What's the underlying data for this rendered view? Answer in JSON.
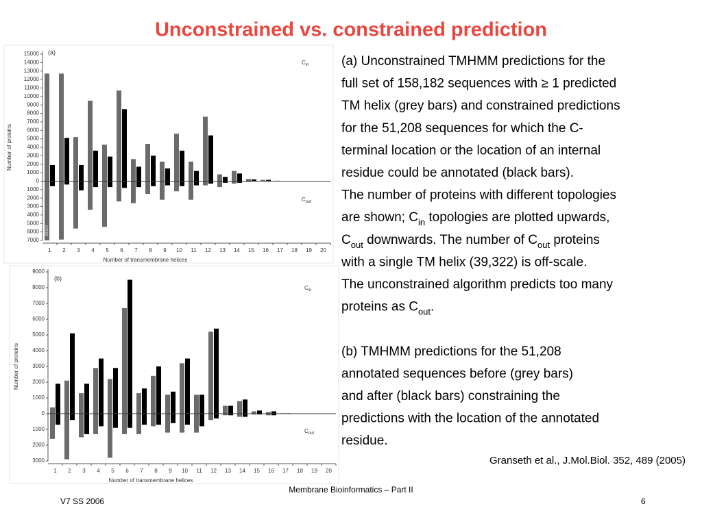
{
  "title": "Unconstrained vs. constrained prediction",
  "chart_data": [
    {
      "type": "bar",
      "panel_label": "(a)",
      "annotations": [
        {
          "text": "C",
          "sub": "in"
        },
        {
          "text": "C",
          "sub": "out"
        }
      ],
      "xlabel": "Number of transmembrane helices",
      "ylabel": "Number of proteins",
      "categories": [
        "1",
        "2",
        "3",
        "4",
        "5",
        "6",
        "7",
        "8",
        "9",
        "10",
        "11",
        "12",
        "13",
        "14",
        "15",
        "16",
        "17",
        "18",
        "19",
        "20"
      ],
      "series": [
        {
          "color": "#6b6b6b",
          "values": [
            12700,
            12700,
            5200,
            9500,
            4300,
            10700,
            2600,
            4400,
            2300,
            5600,
            2300,
            7600,
            800,
            1200,
            250,
            150,
            50,
            20,
            10,
            5
          ]
        },
        {
          "color": "#6b6b6b",
          "values": [
            -39322,
            -6900,
            -5600,
            -3400,
            -5400,
            -2400,
            -2600,
            -1500,
            -2200,
            -1200,
            -2200,
            -500,
            -700,
            -300,
            -100,
            -50,
            -20,
            -10,
            -5,
            -5
          ],
          "value_labels": [
            "39322",
            null,
            null,
            null,
            null,
            null,
            null,
            null,
            null,
            null,
            null,
            null,
            null,
            null,
            null,
            null,
            null,
            null,
            null,
            null
          ]
        },
        {
          "color": "#000000",
          "values": [
            1900,
            5100,
            1900,
            3600,
            2900,
            8500,
            1700,
            3000,
            1500,
            3600,
            1200,
            5400,
            500,
            900,
            200,
            150,
            30,
            10,
            5,
            5
          ]
        },
        {
          "color": "#000000",
          "values": [
            -600,
            -400,
            -1100,
            -700,
            -700,
            -800,
            -700,
            -600,
            -500,
            -600,
            -500,
            -300,
            -200,
            -200,
            -50,
            -50,
            -20,
            -10,
            -5,
            -5
          ]
        }
      ],
      "ylim": [
        -7000,
        15000
      ],
      "yticks": [
        15000,
        14000,
        13000,
        12000,
        11000,
        10000,
        9000,
        8000,
        7000,
        6000,
        5000,
        4000,
        3000,
        2000,
        1000,
        0,
        {
          "value": -1000,
          "label": "1000"
        },
        {
          "value": -2000,
          "label": "2000"
        },
        {
          "value": -3000,
          "label": "3000"
        },
        {
          "value": -4000,
          "label": "4000"
        },
        {
          "value": -5000,
          "label": "5000"
        },
        {
          "value": -6000,
          "label": "6000"
        },
        {
          "value": -7000,
          "label": "7000"
        }
      ]
    },
    {
      "type": "bar",
      "panel_label": "(b)",
      "annotations": [
        {
          "text": "C",
          "sub": "in"
        },
        {
          "text": "C",
          "sub": "out"
        }
      ],
      "xlabel": "Number of transmembrane helices",
      "ylabel": "Number of proteins",
      "categories": [
        "1",
        "2",
        "3",
        "4",
        "5",
        "6",
        "7",
        "8",
        "9",
        "10",
        "11",
        "12",
        "13",
        "14",
        "15",
        "16",
        "17",
        "18",
        "19",
        "20"
      ],
      "series": [
        {
          "color": "#6b6b6b",
          "values": [
            400,
            2100,
            1300,
            2900,
            2200,
            6700,
            1300,
            2400,
            1200,
            3200,
            1200,
            5200,
            500,
            800,
            150,
            100,
            30,
            10,
            5,
            5
          ]
        },
        {
          "color": "#6b6b6b",
          "values": [
            -1600,
            -2900,
            -1500,
            -1300,
            -2800,
            -1300,
            -1300,
            -800,
            -1200,
            -1200,
            -1200,
            -400,
            -100,
            -200,
            -50,
            -100,
            -20,
            -10,
            -5,
            -5
          ]
        },
        {
          "color": "#000000",
          "values": [
            1900,
            5100,
            1900,
            3500,
            2900,
            8500,
            1600,
            3000,
            1400,
            3500,
            1200,
            5400,
            500,
            900,
            200,
            150,
            30,
            10,
            5,
            5
          ]
        },
        {
          "color": "#000000",
          "values": [
            -700,
            -400,
            -1300,
            -800,
            -900,
            -900,
            -700,
            -700,
            -600,
            -700,
            -800,
            -300,
            -100,
            -200,
            -50,
            -100,
            -20,
            -10,
            -5,
            -5
          ]
        }
      ],
      "ylim": [
        -3000,
        9000
      ],
      "yticks": [
        9000,
        8000,
        7000,
        6000,
        5000,
        4000,
        3000,
        2000,
        1000,
        0,
        {
          "value": -1000,
          "label": "1000"
        },
        {
          "value": -2000,
          "label": "2000"
        },
        {
          "value": -3000,
          "label": "3000"
        }
      ]
    }
  ],
  "text_blocks": [
    [
      [
        "(a) Unconstrained TMHMM predictions for the"
      ],
      [
        "full set of 158,182 sequences with ≥ 1 predicted"
      ],
      [
        "TM helix (grey bars) and constrained predictions"
      ],
      [
        "for the 51,208 sequences for which the C-"
      ],
      [
        "terminal location or the location of an internal"
      ],
      [
        "residue could be annotated (black bars)."
      ],
      [
        "The number of proteins with different topologies"
      ],
      [
        "are shown;  C",
        {
          "sub": "in"
        },
        " topologies are plotted upwards,"
      ],
      [
        "C",
        {
          "sub": "out"
        },
        " downwards. The number of C",
        {
          "sub": "out"
        },
        " proteins"
      ],
      [
        "with a single TM helix (39,322) is off-scale."
      ],
      [
        "The unconstrained algorithm predicts too many"
      ],
      [
        "proteins as C",
        {
          "sub": "out"
        },
        "."
      ]
    ],
    [
      [
        "(b) TMHMM predictions for the 51,208"
      ],
      [
        "annotated sequences before (grey bars)"
      ],
      [
        "and after (black bars) constraining the"
      ],
      [
        "predictions with the location of the annotated"
      ],
      [
        "residue."
      ]
    ]
  ],
  "citation": "Granseth et al., J.Mol.Biol. 352, 489 (2005)",
  "footer": {
    "center": "Membrane Bioinformatics – Part II",
    "left": "V7 SS 2006",
    "right": "6"
  }
}
